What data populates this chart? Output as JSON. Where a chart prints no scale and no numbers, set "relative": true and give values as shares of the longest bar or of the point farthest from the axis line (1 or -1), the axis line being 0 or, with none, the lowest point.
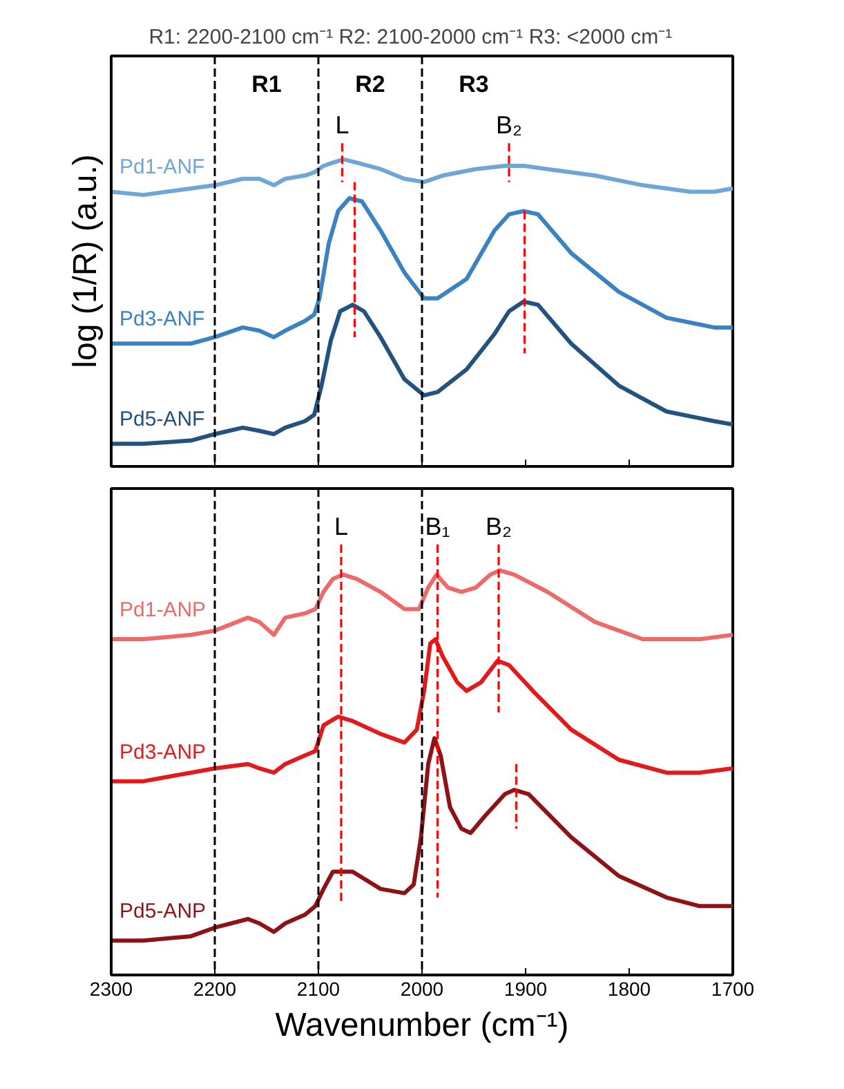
{
  "chart_data": [
    {
      "type": "line",
      "relative": true,
      "title": "R1: 2200-2100 cm⁻¹   R2: 2100-2000 cm⁻¹   R3: <2000 cm⁻¹",
      "ylabel": "log (1/R) (a.u.)",
      "xlim": [
        2300,
        1700
      ],
      "xticks": [
        2300,
        2200,
        2100,
        2000,
        1900,
        1800,
        1700
      ],
      "tick_labels": false,
      "series": [
        {
          "name": "Pd1-ANF",
          "color": "#6fa6d8",
          "x": [
            2300,
            2269,
            2223,
            2200,
            2173,
            2157,
            2143,
            2132,
            2113,
            2104,
            2095,
            2086,
            2076,
            2063,
            2040,
            2017,
            1998,
            1980,
            1948,
            1920,
            1902,
            1879,
            1833,
            1787,
            1741,
            1718,
            1700
          ],
          "values": [
            0.85,
            0.84,
            0.86,
            0.87,
            0.89,
            0.89,
            0.87,
            0.89,
            0.9,
            0.91,
            0.93,
            0.94,
            0.95,
            0.94,
            0.92,
            0.89,
            0.88,
            0.9,
            0.92,
            0.93,
            0.93,
            0.92,
            0.9,
            0.87,
            0.85,
            0.85,
            0.86
          ]
        },
        {
          "name": "Pd3-ANF",
          "color": "#3a82c2",
          "x": [
            2300,
            2269,
            2223,
            2200,
            2173,
            2157,
            2143,
            2132,
            2113,
            2104,
            2099,
            2090,
            2081,
            2070,
            2058,
            2040,
            2017,
            1998,
            1985,
            1957,
            1930,
            1916,
            1902,
            1888,
            1856,
            1810,
            1764,
            1718,
            1700
          ],
          "values": [
            0.38,
            0.38,
            0.38,
            0.4,
            0.43,
            0.42,
            0.4,
            0.42,
            0.45,
            0.47,
            0.52,
            0.69,
            0.79,
            0.83,
            0.82,
            0.73,
            0.6,
            0.52,
            0.52,
            0.58,
            0.73,
            0.78,
            0.79,
            0.78,
            0.66,
            0.54,
            0.46,
            0.43,
            0.43
          ]
        },
        {
          "name": "Pd5-ANF",
          "color": "#23527e",
          "x": [
            2300,
            2269,
            2223,
            2200,
            2173,
            2157,
            2143,
            2132,
            2113,
            2104,
            2097,
            2088,
            2079,
            2067,
            2056,
            2040,
            2017,
            1998,
            1985,
            1957,
            1930,
            1916,
            1902,
            1888,
            1856,
            1810,
            1764,
            1718,
            1700
          ],
          "values": [
            0.07,
            0.07,
            0.08,
            0.1,
            0.12,
            0.11,
            0.1,
            0.12,
            0.14,
            0.16,
            0.25,
            0.39,
            0.48,
            0.5,
            0.48,
            0.4,
            0.27,
            0.22,
            0.23,
            0.3,
            0.41,
            0.48,
            0.51,
            0.5,
            0.38,
            0.25,
            0.17,
            0.14,
            0.13
          ]
        },
        {
          "type": "line",
          "color": "#ff0000",
          "line_style": "dashed",
          "x": [
            2077,
            2077
          ],
          "values": [
            1.0,
            0.88
          ]
        },
        {
          "type": "line",
          "color": "#ff0000",
          "line_style": "dashed",
          "x": [
            2065,
            2065
          ],
          "values": [
            0.88,
            0.4
          ]
        },
        {
          "type": "line",
          "color": "#ff0000",
          "line_style": "dashed",
          "x": [
            1916,
            1916
          ],
          "values": [
            1.0,
            0.88
          ]
        },
        {
          "type": "line",
          "color": "#ff0000",
          "line_style": "dashed",
          "x": [
            1901,
            1901
          ],
          "values": [
            0.79,
            0.35
          ]
        }
      ],
      "ref_lines": [
        {
          "axis": "x",
          "value": 2200,
          "label": null,
          "color": "#000000",
          "line_style": "dashed"
        },
        {
          "axis": "x",
          "value": 2100,
          "label": null,
          "color": "#000000",
          "line_style": "dashed"
        },
        {
          "axis": "x",
          "value": 2000,
          "label": null,
          "color": "#000000",
          "line_style": "dashed"
        }
      ],
      "annotations": [
        "R1",
        "R2",
        "R3",
        {
          "text": "L",
          "x": 2077,
          "y": 1.0
        },
        {
          "text": "B₂",
          "x": 1916,
          "y": 1.0
        }
      ]
    },
    {
      "type": "line",
      "relative": true,
      "xlabel": "Wavenumber (cm⁻¹)",
      "xlim": [
        2300,
        1700
      ],
      "xticks": [
        2300,
        2200,
        2100,
        2000,
        1900,
        1800,
        1700
      ],
      "tick_labels": "x",
      "series": [
        {
          "name": "Pd1-ANP",
          "color": "#ec6a6a",
          "x": [
            2300,
            2269,
            2223,
            2200,
            2168,
            2157,
            2143,
            2132,
            2113,
            2103,
            2095,
            2086,
            2076,
            2063,
            2040,
            2017,
            2003,
            1994,
            1986,
            1975,
            1962,
            1948,
            1934,
            1925,
            1911,
            1879,
            1833,
            1787,
            1764,
            1732,
            1700
          ],
          "values": [
            0.78,
            0.78,
            0.79,
            0.8,
            0.83,
            0.82,
            0.79,
            0.83,
            0.84,
            0.85,
            0.89,
            0.92,
            0.93,
            0.92,
            0.89,
            0.85,
            0.85,
            0.9,
            0.93,
            0.9,
            0.89,
            0.9,
            0.93,
            0.94,
            0.93,
            0.89,
            0.82,
            0.78,
            0.78,
            0.78,
            0.79
          ]
        },
        {
          "name": "Pd3-ANP",
          "color": "#e3191c",
          "x": [
            2300,
            2269,
            2223,
            2200,
            2168,
            2157,
            2143,
            2132,
            2113,
            2103,
            2095,
            2081,
            2067,
            2040,
            2017,
            2005,
            1998,
            1992,
            1987,
            1980,
            1966,
            1957,
            1943,
            1927,
            1916,
            1893,
            1856,
            1810,
            1764,
            1732,
            1700
          ],
          "values": [
            0.45,
            0.45,
            0.47,
            0.48,
            0.49,
            0.48,
            0.47,
            0.49,
            0.51,
            0.52,
            0.58,
            0.6,
            0.59,
            0.56,
            0.54,
            0.57,
            0.66,
            0.77,
            0.78,
            0.74,
            0.68,
            0.66,
            0.68,
            0.73,
            0.72,
            0.66,
            0.57,
            0.5,
            0.47,
            0.47,
            0.48
          ]
        },
        {
          "name": "Pd5-ANP",
          "color": "#8e1316",
          "x": [
            2300,
            2269,
            2223,
            2200,
            2168,
            2157,
            2143,
            2132,
            2113,
            2103,
            2095,
            2086,
            2067,
            2040,
            2017,
            2008,
            2001,
            1994,
            1988,
            1982,
            1973,
            1962,
            1953,
            1939,
            1920,
            1911,
            1897,
            1856,
            1810,
            1764,
            1732,
            1700
          ],
          "values": [
            0.08,
            0.08,
            0.09,
            0.11,
            0.13,
            0.12,
            0.1,
            0.12,
            0.14,
            0.16,
            0.2,
            0.24,
            0.24,
            0.2,
            0.19,
            0.21,
            0.32,
            0.49,
            0.55,
            0.51,
            0.39,
            0.34,
            0.33,
            0.37,
            0.42,
            0.43,
            0.42,
            0.32,
            0.23,
            0.18,
            0.16,
            0.16
          ]
        },
        {
          "type": "line",
          "color": "#ff0000",
          "line_style": "dashed",
          "x": [
            2078,
            2078
          ],
          "values": [
            1.0,
            0.17
          ]
        },
        {
          "type": "line",
          "color": "#ff0000",
          "line_style": "dashed",
          "x": [
            1985,
            1985
          ],
          "values": [
            1.0,
            0.18
          ]
        },
        {
          "type": "line",
          "color": "#ff0000",
          "line_style": "dashed",
          "x": [
            1926,
            1926
          ],
          "values": [
            1.0,
            0.61
          ]
        },
        {
          "type": "line",
          "color": "#ff0000",
          "line_style": "dashed",
          "x": [
            1909,
            1909
          ],
          "values": [
            0.49,
            0.34
          ]
        }
      ],
      "ref_lines": [
        {
          "axis": "x",
          "value": 2200,
          "label": null,
          "color": "#000000",
          "line_style": "dashed"
        },
        {
          "axis": "x",
          "value": 2100,
          "label": null,
          "color": "#000000",
          "line_style": "dashed"
        },
        {
          "axis": "x",
          "value": 2000,
          "label": null,
          "color": "#000000",
          "line_style": "dashed"
        }
      ],
      "annotations": [
        {
          "text": "L",
          "x": 2078,
          "y": 1.0
        },
        {
          "text": "B₁",
          "x": 1985,
          "y": 1.0
        },
        {
          "text": "B₂",
          "x": 1926,
          "y": 1.0
        }
      ]
    }
  ]
}
